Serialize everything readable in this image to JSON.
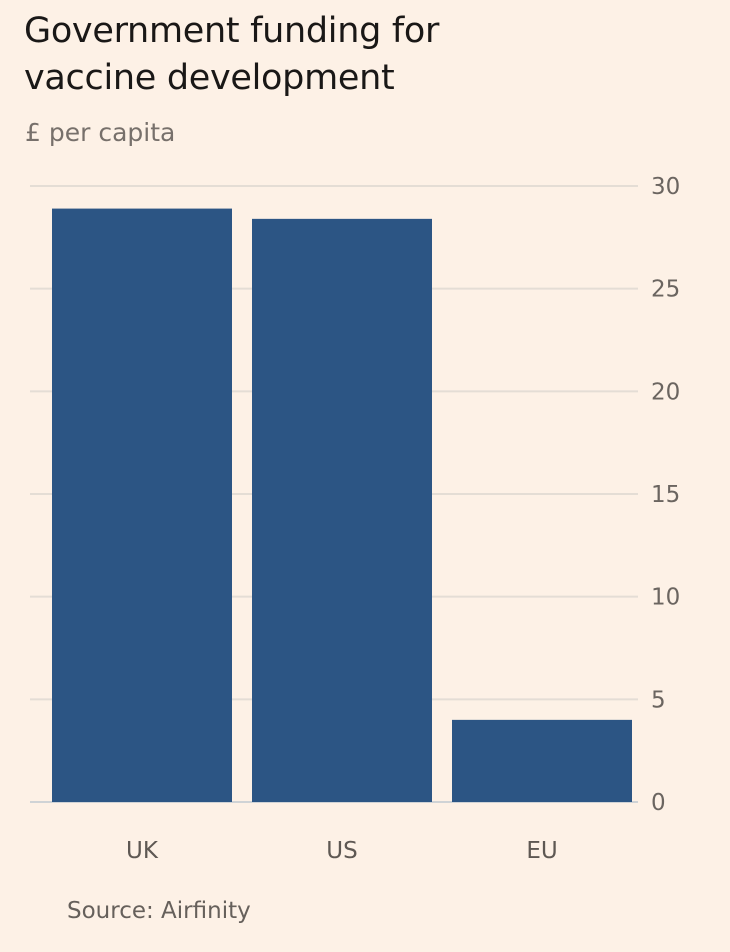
{
  "chart_data": {
    "type": "bar",
    "title": "Government funding for vaccine development",
    "subtitle": "£ per capita",
    "categories": [
      "UK",
      "US",
      "EU"
    ],
    "values": [
      28.9,
      28.4,
      4.0
    ],
    "ylim": [
      0,
      30
    ],
    "yticks": [
      0,
      5,
      10,
      15,
      20,
      25,
      30
    ],
    "ytick_labels": [
      "0",
      "5",
      "10",
      "15",
      "20",
      "25",
      "30"
    ],
    "yaxis_position": "right",
    "grid": true,
    "xlabel": "",
    "ylabel": "£ per capita",
    "source": "Source: Airfinity",
    "colors": {
      "bar": "#2c5584",
      "grid": "#e4ddd5",
      "baseline": "#cfd3d6",
      "background": "#fdf1e6"
    }
  }
}
